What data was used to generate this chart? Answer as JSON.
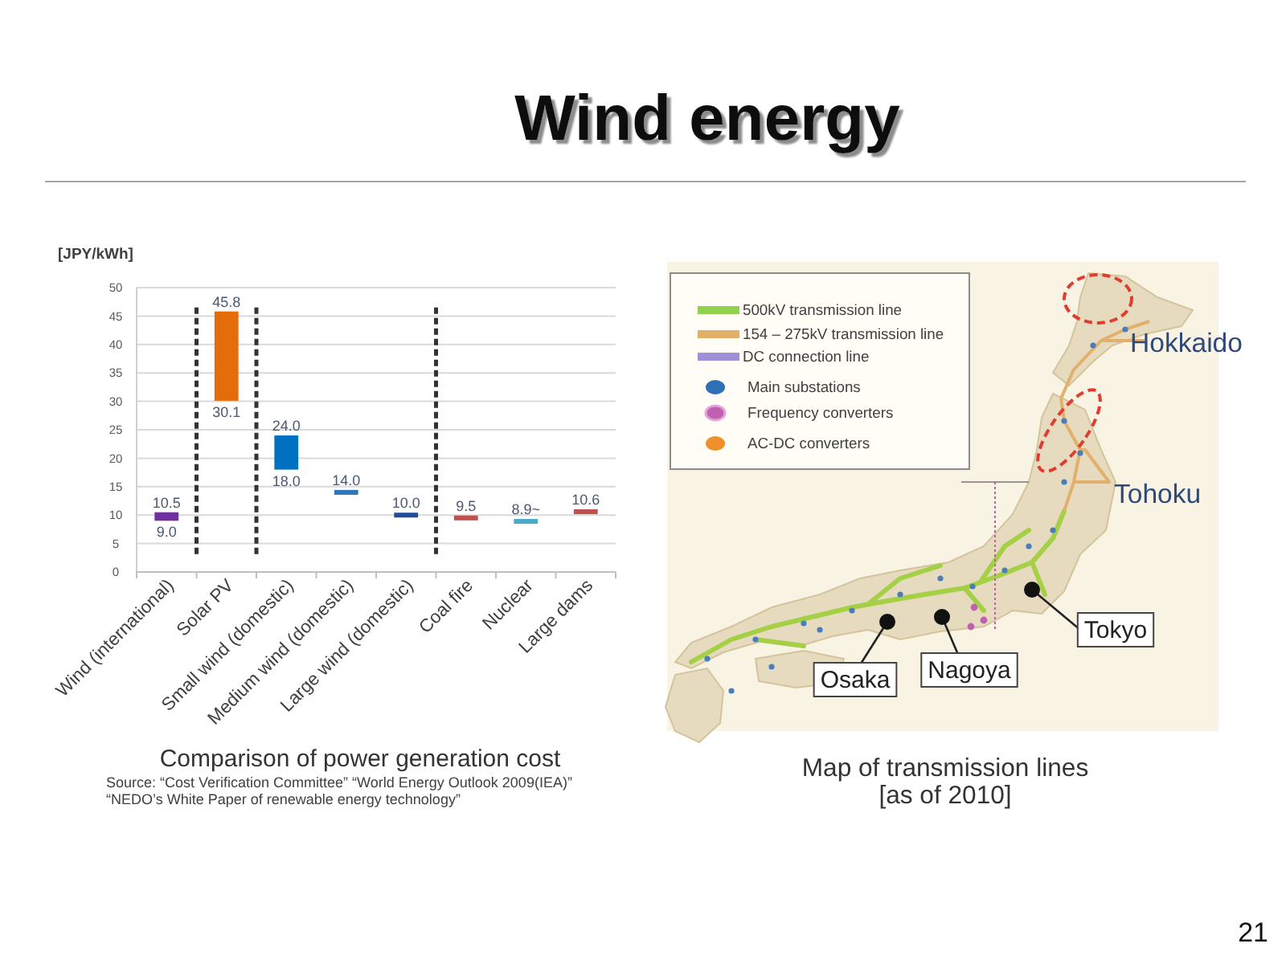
{
  "chart_data": [
    {
      "type": "other",
      "title": "Wind energy",
      "annotations": [
        "21"
      ]
    },
    {
      "type": "bar",
      "title": "Comparison of power generation cost",
      "ylabel": "[JPY/kWh]",
      "categories": [
        "Wind (international)",
        "Solar PV",
        "Small wind (domestic)",
        "Medium wind (domestic)",
        "Large wind (domestic)",
        "Coal fire",
        "Nuclear",
        "Large dams"
      ],
      "base": [
        9.0,
        30.1,
        18.0,
        14.0,
        10.0,
        9.5,
        8.9,
        10.6
      ],
      "values": [
        1.5,
        15.7,
        6.0,
        0,
        0,
        0,
        0,
        0
      ],
      "colors": [
        "#7030a0",
        "#e46c0a",
        "#0070c0",
        "#2e75b6",
        "#1f4e9a",
        "#c0504d",
        "#4bacc6",
        "#c0504d"
      ],
      "ylim": [
        0,
        50
      ],
      "yticks": [
        0,
        5,
        10,
        15,
        20,
        25,
        30,
        35,
        40,
        45,
        50
      ],
      "grid": "y",
      "annotations": [
        {
          "text": "10.5",
          "x": "Wind (international)",
          "y": 10.5
        },
        {
          "text": "9.0",
          "x": "Wind (international)",
          "y": 9.0
        },
        {
          "text": "45.8",
          "x": "Solar PV",
          "y": 45.8
        },
        {
          "text": "30.1",
          "x": "Solar PV",
          "y": 30.1
        },
        {
          "text": "24.0",
          "x": "Small wind (domestic)",
          "y": 24.0
        },
        {
          "text": "18.0",
          "x": "Small wind (domestic)",
          "y": 18.0
        },
        {
          "text": "14.0",
          "x": "Medium wind (domestic)",
          "y": 14.0
        },
        {
          "text": "10.0",
          "x": "Large wind (domestic)",
          "y": 10.0
        },
        {
          "text": "9.5",
          "x": "Coal fire",
          "y": 9.5
        },
        {
          "text": "8.9~",
          "x": "Nuclear",
          "y": 8.9
        },
        {
          "text": "10.6",
          "x": "Large dams",
          "y": 10.6
        },
        "Source: “Cost Verification Committee” “World Energy Outlook 2009(IEA)”",
        "“NEDO’s White Paper of renewable energy technology”"
      ]
    },
    {
      "type": "other",
      "title": "Map of transmission lines [as of 2010]",
      "annotations": [
        "500kV transmission line",
        "154 – 275kV transmission line",
        "DC connection line",
        "Main substations",
        "Frequency converters",
        "AC-DC converters",
        "Hokkaido",
        "Tohoku",
        "Tokyo",
        "Nagoya",
        "Osaka"
      ]
    }
  ]
}
